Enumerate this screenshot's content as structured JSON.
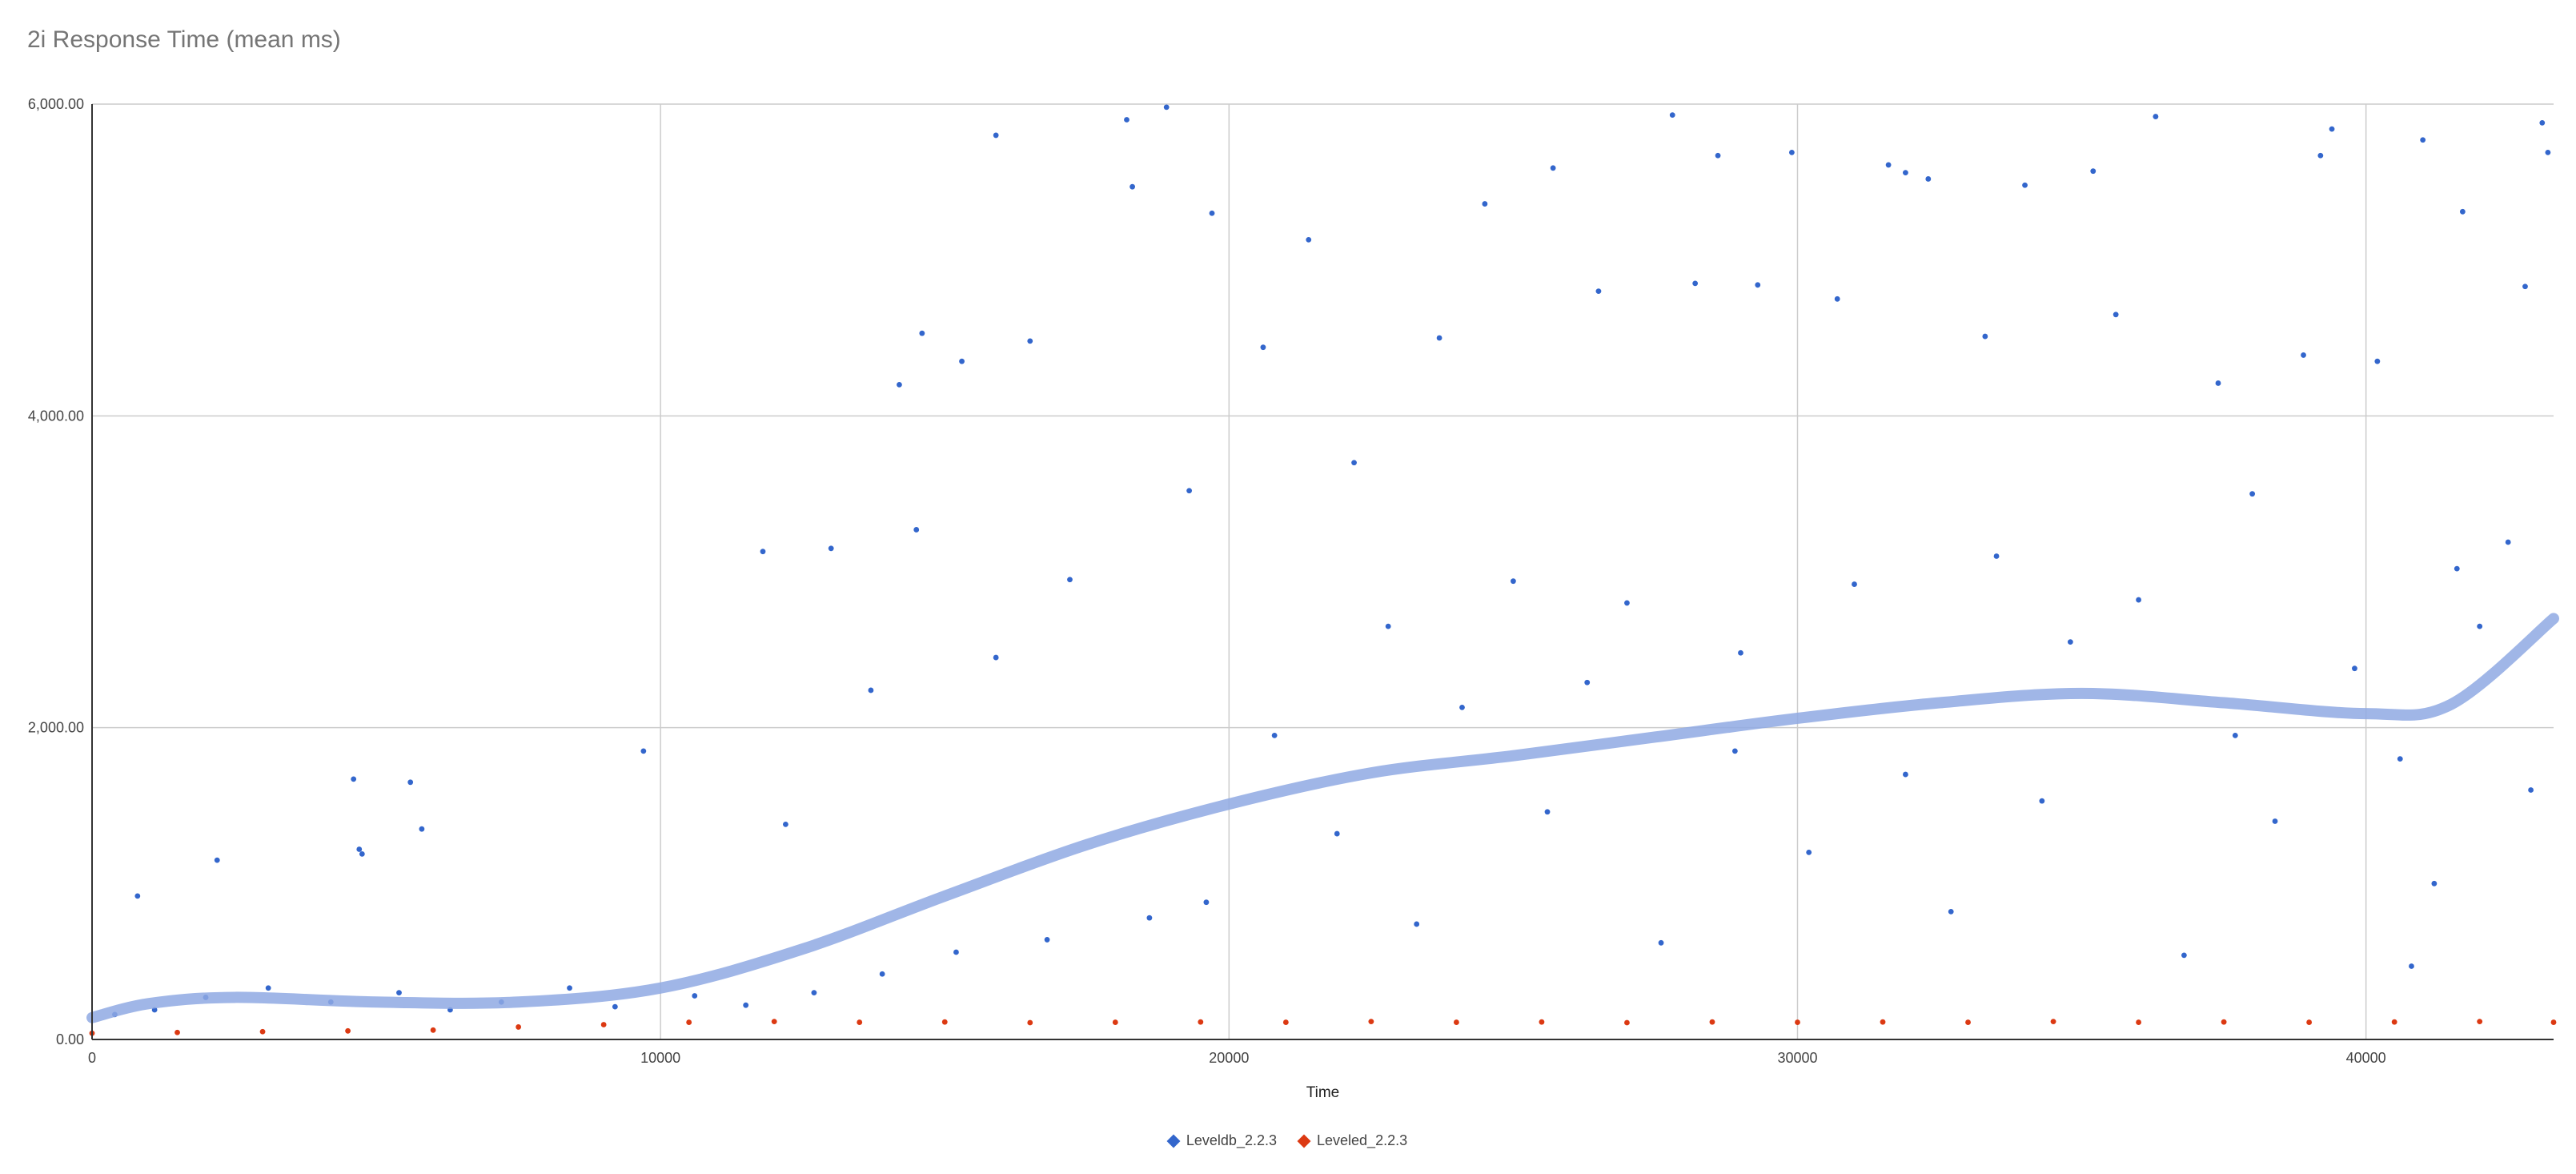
{
  "chart_data": {
    "type": "scatter",
    "title": "2i Response Time (mean ms)",
    "xlabel": "Time",
    "ylabel": "",
    "xlim": [
      0,
      43300
    ],
    "ylim": [
      0,
      6000
    ],
    "x_ticks": [
      0,
      10000,
      20000,
      30000,
      40000
    ],
    "x_tick_labels": [
      "0",
      "10000",
      "20000",
      "30000",
      "40000"
    ],
    "y_ticks": [
      0,
      2000,
      4000,
      6000
    ],
    "y_tick_labels": [
      "0.00",
      "2,000.00",
      "4,000.00",
      "6,000.00"
    ],
    "grid": true,
    "legend_position": "bottom",
    "series": [
      {
        "name": "Leveldb_2.2.3",
        "color": "#3366cc",
        "trendline_color": "#8fa9e3",
        "trendline": {
          "x": [
            0,
            1000,
            2500,
            5000,
            7500,
            10000,
            12500,
            15000,
            17500,
            20000,
            22500,
            25000,
            27500,
            30000,
            32500,
            35000,
            37500,
            40000,
            41500,
            43300
          ],
          "y": [
            140,
            230,
            270,
            240,
            240,
            330,
            580,
            920,
            1250,
            1510,
            1710,
            1820,
            1940,
            2060,
            2160,
            2220,
            2160,
            2090,
            2150,
            2700
          ]
        },
        "points": [
          [
            4600,
            1670
          ],
          [
            4700,
            1220
          ],
          [
            4750,
            1190
          ],
          [
            5600,
            1650
          ],
          [
            5800,
            1350
          ],
          [
            9700,
            1850
          ],
          [
            2200,
            1150
          ],
          [
            800,
            920
          ],
          [
            11800,
            3130
          ],
          [
            13000,
            3150
          ],
          [
            14200,
            4200
          ],
          [
            14600,
            4530
          ],
          [
            15300,
            4350
          ],
          [
            15900,
            5800
          ],
          [
            18200,
            5900
          ],
          [
            18900,
            5980
          ],
          [
            18300,
            5470
          ],
          [
            19700,
            5300
          ],
          [
            21400,
            5130
          ],
          [
            24500,
            5360
          ],
          [
            25700,
            5590
          ],
          [
            27800,
            5930
          ],
          [
            28600,
            5670
          ],
          [
            29300,
            4840
          ],
          [
            29900,
            5690
          ],
          [
            31600,
            5610
          ],
          [
            31900,
            5560
          ],
          [
            32300,
            5520
          ],
          [
            34000,
            5480
          ],
          [
            35200,
            5570
          ],
          [
            36300,
            5920
          ],
          [
            39200,
            5670
          ],
          [
            39400,
            5840
          ],
          [
            41000,
            5770
          ],
          [
            41700,
            5310
          ],
          [
            42800,
            4830
          ],
          [
            43100,
            5880
          ],
          [
            43200,
            5690
          ],
          [
            16500,
            4480
          ],
          [
            19300,
            3520
          ],
          [
            20600,
            4440
          ],
          [
            22200,
            3700
          ],
          [
            23700,
            4500
          ],
          [
            26500,
            4800
          ],
          [
            28200,
            4850
          ],
          [
            30700,
            4750
          ],
          [
            33300,
            4510
          ],
          [
            35600,
            4650
          ],
          [
            37400,
            4210
          ],
          [
            38900,
            4390
          ],
          [
            40200,
            4350
          ],
          [
            41600,
            3020
          ],
          [
            42500,
            3190
          ],
          [
            17200,
            2950
          ],
          [
            15900,
            2450
          ],
          [
            14500,
            3270
          ],
          [
            12200,
            1380
          ],
          [
            13700,
            2240
          ],
          [
            22800,
            2650
          ],
          [
            25000,
            2940
          ],
          [
            27000,
            2800
          ],
          [
            29000,
            2480
          ],
          [
            31000,
            2920
          ],
          [
            33500,
            3100
          ],
          [
            36000,
            2820
          ],
          [
            38000,
            3500
          ],
          [
            39800,
            2380
          ],
          [
            42000,
            2650
          ],
          [
            20800,
            1950
          ],
          [
            24100,
            2130
          ],
          [
            26300,
            2290
          ],
          [
            28900,
            1850
          ],
          [
            31900,
            1700
          ],
          [
            34800,
            2550
          ],
          [
            37700,
            1950
          ],
          [
            40600,
            1800
          ],
          [
            42900,
            1600
          ],
          [
            21900,
            1320
          ],
          [
            25600,
            1460
          ],
          [
            30200,
            1200
          ],
          [
            34300,
            1530
          ],
          [
            38400,
            1400
          ],
          [
            41200,
            1000
          ],
          [
            19600,
            880
          ],
          [
            23300,
            740
          ],
          [
            27600,
            620
          ],
          [
            32700,
            820
          ],
          [
            36800,
            540
          ],
          [
            40800,
            470
          ],
          [
            16800,
            640
          ],
          [
            18600,
            780
          ],
          [
            15200,
            560
          ],
          [
            13900,
            420
          ],
          [
            12700,
            300
          ],
          [
            11500,
            220
          ],
          [
            10600,
            280
          ],
          [
            9200,
            210
          ],
          [
            8400,
            330
          ],
          [
            7200,
            240
          ],
          [
            6300,
            190
          ],
          [
            5400,
            300
          ],
          [
            4200,
            240
          ],
          [
            3100,
            330
          ],
          [
            2000,
            270
          ],
          [
            1100,
            190
          ],
          [
            400,
            160
          ]
        ]
      },
      {
        "name": "Leveldb_2.2.3",
        "color": "#3366cc",
        "points_note_hidden": false,
        "points": []
      },
      {
        "name": "Leveled_2.2.3",
        "color": "#dc3912",
        "points": [
          [
            0,
            40
          ],
          [
            1500,
            45
          ],
          [
            3000,
            50
          ],
          [
            4500,
            55
          ],
          [
            6000,
            60
          ],
          [
            7500,
            80
          ],
          [
            9000,
            95
          ],
          [
            10500,
            110
          ],
          [
            12000,
            115
          ],
          [
            13500,
            110
          ],
          [
            15000,
            112
          ],
          [
            16500,
            108
          ],
          [
            18000,
            110
          ],
          [
            19500,
            112
          ],
          [
            21000,
            110
          ],
          [
            22500,
            115
          ],
          [
            24000,
            110
          ],
          [
            25500,
            112
          ],
          [
            27000,
            108
          ],
          [
            28500,
            112
          ],
          [
            30000,
            110
          ],
          [
            31500,
            112
          ],
          [
            33000,
            110
          ],
          [
            34500,
            115
          ],
          [
            36000,
            110
          ],
          [
            37500,
            112
          ],
          [
            39000,
            110
          ],
          [
            40500,
            112
          ],
          [
            42000,
            115
          ],
          [
            43300,
            110
          ]
        ]
      }
    ]
  }
}
